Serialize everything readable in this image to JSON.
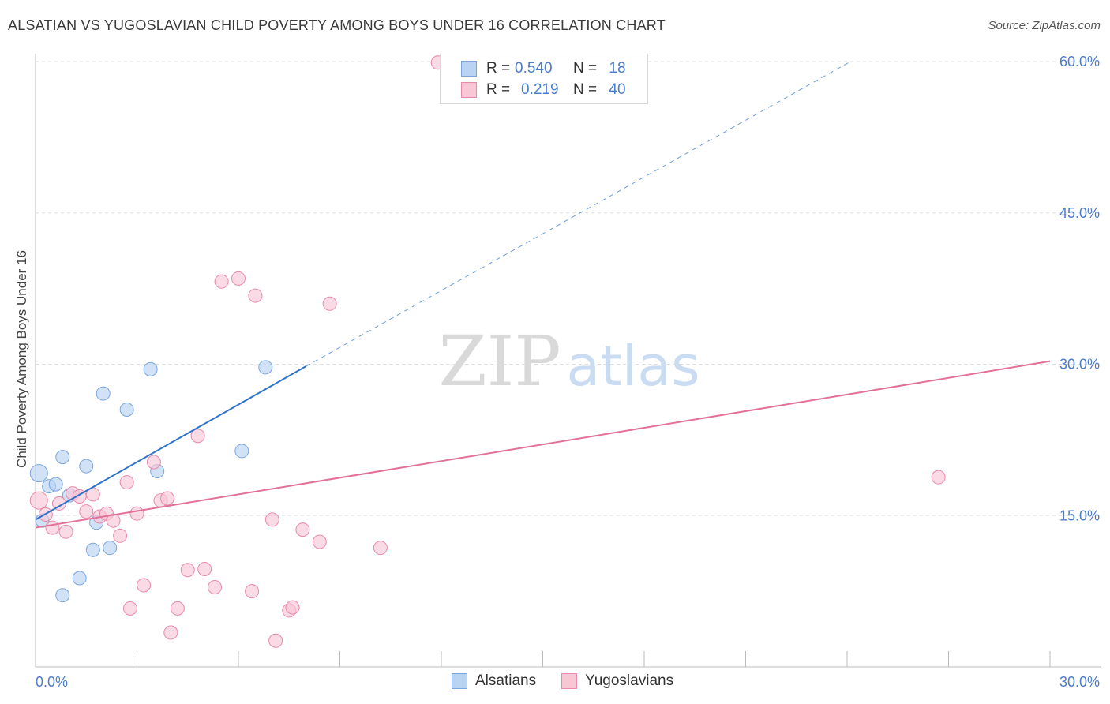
{
  "header": {
    "title": "ALSATIAN VS YUGOSLAVIAN CHILD POVERTY AMONG BOYS UNDER 16 CORRELATION CHART",
    "source": "Source: ZipAtlas.com"
  },
  "legend_top": {
    "rows": [
      {
        "r_label": "R = ",
        "r_value": "0.540",
        "n_label": "N = ",
        "n_value": "18"
      },
      {
        "r_label": "R = ",
        "r_value": "0.219",
        "n_label": "N = ",
        "n_value": "40"
      }
    ]
  },
  "legend_bottom": {
    "items": [
      "Alsatians",
      "Yugoslavians"
    ]
  },
  "colors": {
    "alsatians_fill": "#b9d3f3",
    "alsatians_stroke": "#7aa6dd",
    "alsatians_line": "#2f72c9",
    "yugoslavians_fill": "#f8c6d5",
    "yugoslavians_stroke": "#e98aaa",
    "yugoslavians_line": "#e2719a",
    "tick_label": "#4a7ccc",
    "grid": "#dddddd"
  },
  "watermark": {
    "part1": "ZIP",
    "part2": "atlas"
  },
  "chart_data": {
    "type": "scatter",
    "title": "ALSATIAN VS YUGOSLAVIAN CHILD POVERTY AMONG BOYS UNDER 16 CORRELATION CHART",
    "xlabel": "",
    "ylabel": "Child Poverty Among Boys Under 16",
    "xlim": [
      0,
      30
    ],
    "ylim": [
      0,
      60
    ],
    "x_tick_labels": [
      "0.0%",
      "30.0%"
    ],
    "y_ticks": [
      15,
      30,
      45,
      60
    ],
    "y_tick_labels": [
      "15.0%",
      "30.0%",
      "45.0%",
      "60.0%"
    ],
    "grid": true,
    "series": [
      {
        "name": "Alsatians",
        "r": 0.54,
        "n": 18,
        "points": [
          [
            0.1,
            19.2
          ],
          [
            0.2,
            14.5
          ],
          [
            0.4,
            17.9
          ],
          [
            0.6,
            18.1
          ],
          [
            0.8,
            20.8
          ],
          [
            1.0,
            17.0
          ],
          [
            1.5,
            19.9
          ],
          [
            1.7,
            11.6
          ],
          [
            1.8,
            14.3
          ],
          [
            2.0,
            27.1
          ],
          [
            2.2,
            11.8
          ],
          [
            2.7,
            25.5
          ],
          [
            3.4,
            29.5
          ],
          [
            3.6,
            19.4
          ],
          [
            0.8,
            7.1
          ],
          [
            1.3,
            8.8
          ],
          [
            6.1,
            21.4
          ],
          [
            6.8,
            29.7
          ]
        ],
        "trend": {
          "x": [
            0,
            8
          ],
          "y": [
            14.6,
            29.8
          ]
        },
        "trend_extension": {
          "x": [
            8,
            24.1
          ],
          "y": [
            29.8,
            60.0
          ]
        }
      },
      {
        "name": "Yugoslavians",
        "r": 0.219,
        "n": 40,
        "points": [
          [
            0.1,
            16.5
          ],
          [
            0.3,
            15.1
          ],
          [
            0.5,
            13.8
          ],
          [
            0.7,
            16.2
          ],
          [
            0.9,
            13.4
          ],
          [
            1.1,
            17.2
          ],
          [
            1.3,
            16.9
          ],
          [
            1.5,
            15.4
          ],
          [
            1.7,
            17.1
          ],
          [
            1.9,
            14.9
          ],
          [
            2.1,
            15.2
          ],
          [
            2.3,
            14.5
          ],
          [
            2.5,
            13.0
          ],
          [
            2.7,
            18.3
          ],
          [
            3.0,
            15.2
          ],
          [
            3.2,
            8.1
          ],
          [
            2.8,
            5.8
          ],
          [
            3.5,
            20.3
          ],
          [
            3.7,
            16.5
          ],
          [
            3.9,
            16.7
          ],
          [
            4.0,
            3.4
          ],
          [
            4.2,
            5.8
          ],
          [
            4.5,
            9.6
          ],
          [
            4.8,
            22.9
          ],
          [
            5.0,
            9.7
          ],
          [
            5.3,
            7.9
          ],
          [
            5.5,
            38.2
          ],
          [
            6.0,
            38.5
          ],
          [
            6.4,
            7.5
          ],
          [
            6.5,
            36.8
          ],
          [
            7.0,
            14.6
          ],
          [
            7.1,
            2.6
          ],
          [
            7.5,
            5.6
          ],
          [
            7.6,
            5.9
          ],
          [
            7.9,
            13.6
          ],
          [
            8.4,
            12.4
          ],
          [
            8.7,
            36.0
          ],
          [
            10.2,
            11.8
          ],
          [
            11.9,
            59.9
          ],
          [
            26.7,
            18.8
          ]
        ],
        "trend": {
          "x": [
            0,
            30
          ],
          "y": [
            13.8,
            30.3
          ]
        }
      }
    ]
  }
}
